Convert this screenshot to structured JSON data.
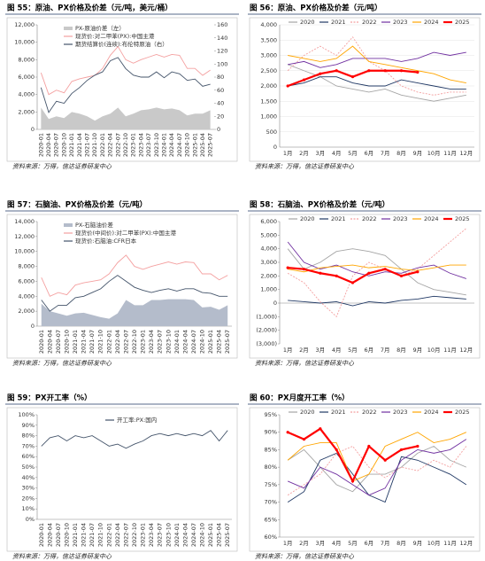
{
  "chart_data": [
    {
      "type": "line",
      "title": "图 55：原油、PX价格及价差（元/吨，美元/桶）",
      "source": "资料来源：万得，信达证券研发中心",
      "legend": "upper left",
      "categories": [
        "2020-01",
        "2020-04",
        "2020-07",
        "2020-10",
        "2021-01",
        "2021-04",
        "2021-07",
        "2021-10",
        "2022-01",
        "2022-04",
        "2022-07",
        "2022-10",
        "2023-01",
        "2023-04",
        "2023-07",
        "2023-10",
        "2024-01",
        "2024-04",
        "2024-07",
        "2024-10",
        "2025-01",
        "2025-04",
        "2025-07"
      ],
      "series": [
        {
          "name": "PX-原油价差（左）",
          "color": "#c9c9c9",
          "kind": "area",
          "values": [
            2500,
            1200,
            1500,
            1300,
            2000,
            1800,
            1500,
            1000,
            1500,
            1800,
            2500,
            1500,
            1800,
            2200,
            2300,
            2500,
            2300,
            2400,
            2200,
            1600,
            1800,
            1800,
            2200
          ]
        },
        {
          "name": "现货价:对二甲苯(PX):中国主港",
          "color": "#f4a0a0",
          "values": [
            6500,
            4000,
            4500,
            4200,
            5500,
            5800,
            6000,
            6200,
            7000,
            8500,
            9500,
            8000,
            7600,
            8000,
            8300,
            8600,
            8300,
            8600,
            8500,
            7000,
            7000,
            6200,
            6800
          ]
        },
        {
          "name": "期货结算价(连续):布伦特原油（右）",
          "color": "#44546a",
          "axis": "y2",
          "values": [
            64,
            26,
            43,
            40,
            55,
            64,
            75,
            83,
            88,
            105,
            110,
            93,
            83,
            80,
            80,
            88,
            79,
            88,
            85,
            75,
            77,
            66,
            69
          ]
        }
      ],
      "ylim": [
        0,
        12000
      ],
      "yticks": [
        0,
        {
          "value": 2000,
          "label": "2,000"
        },
        {
          "value": 4000,
          "label": "4,000"
        },
        {
          "value": 6000,
          "label": "6,000"
        },
        {
          "value": 8000,
          "label": "8,000"
        },
        {
          "value": 10000,
          "label": "10,000"
        },
        {
          "value": 12000,
          "label": "12,000"
        }
      ],
      "y2lim": [
        0,
        160
      ],
      "y2ticks": [
        0,
        20,
        40,
        60,
        80,
        100,
        120,
        140,
        160
      ]
    },
    {
      "type": "line",
      "title": "图 56：原油、PX价格及价差（元/吨）",
      "source": "资料来源：万得，信达证券研发中心",
      "legend": "top",
      "grid": true,
      "categories": [
        "1月",
        "2月",
        "3月",
        "4月",
        "5月",
        "6月",
        "7月",
        "8月",
        "9月",
        "10月",
        "11月",
        "12月"
      ],
      "series": [
        {
          "name": "2020",
          "color": "#a5a5a5",
          "values": [
            2700,
            2500,
            2300,
            2000,
            1900,
            1800,
            1900,
            1700,
            1600,
            1500,
            1600,
            1700
          ]
        },
        {
          "name": "2021",
          "color": "#203864",
          "values": [
            2000,
            2100,
            2300,
            2300,
            2100,
            2000,
            2000,
            2200,
            2100,
            2000,
            1900,
            1900
          ]
        },
        {
          "name": "2022",
          "color": "#f4a0a0",
          "dash": true,
          "values": [
            2500,
            3000,
            3300,
            3000,
            3600,
            2800,
            2500,
            2000,
            1800,
            1700,
            1800,
            1800
          ]
        },
        {
          "name": "2023",
          "color": "#7030a0",
          "values": [
            2700,
            2800,
            2600,
            2700,
            2900,
            2900,
            2900,
            2800,
            2900,
            3100,
            3000,
            3100
          ]
        },
        {
          "name": "2024",
          "color": "#ffa500",
          "values": [
            3000,
            2900,
            2800,
            2900,
            3300,
            2800,
            2700,
            2600,
            2500,
            2400,
            2200,
            2100
          ]
        },
        {
          "name": "2025",
          "color": "#ff0000",
          "width": 2.2,
          "marker": true,
          "values": [
            2000,
            2200,
            2400,
            2500,
            2300,
            2500,
            2500,
            2500,
            2450,
            null,
            null,
            null
          ]
        }
      ],
      "ylim": [
        0,
        4000
      ],
      "yticks": [
        0,
        500,
        {
          "value": 1000,
          "label": "1,000"
        },
        {
          "value": 1500,
          "label": "1,500"
        },
        {
          "value": 2000,
          "label": "2,000"
        },
        {
          "value": 2500,
          "label": "2,500"
        },
        {
          "value": 3000,
          "label": "3,000"
        },
        {
          "value": 3500,
          "label": "3,500"
        },
        {
          "value": 4000,
          "label": "4,000"
        }
      ]
    },
    {
      "type": "line",
      "title": "图 57：石脑油、PX价格及价差（元/吨）",
      "source": "资料来源：万得，信达证券研发中心",
      "legend": "upper left",
      "categories": [
        "2020-01",
        "2020-04",
        "2020-07",
        "2020-10",
        "2021-01",
        "2021-04",
        "2021-07",
        "2021-10",
        "2022-01",
        "2022-04",
        "2022-07",
        "2022-10",
        "2023-01",
        "2023-04",
        "2023-07",
        "2023-10",
        "2024-01",
        "2024-04",
        "2024-07",
        "2024-10",
        "2025-01",
        "2025-04",
        "2025-07"
      ],
      "series": [
        {
          "name": "PX-石脑油价差",
          "color": "#b4bccb",
          "kind": "area",
          "values": [
            3000,
            2000,
            1700,
            1400,
            1700,
            1800,
            1500,
            1200,
            1000,
            1700,
            3500,
            2800,
            2800,
            3500,
            3500,
            3600,
            3600,
            3600,
            3500,
            2500,
            2600,
            2200,
            2800
          ]
        },
        {
          "name": "现货价(中间价):对二甲苯(PX):中国主港",
          "color": "#f4a0a0",
          "values": [
            6500,
            4000,
            4500,
            4200,
            5500,
            5800,
            6000,
            6200,
            7000,
            8500,
            9500,
            8000,
            7600,
            8000,
            8300,
            8600,
            8300,
            8600,
            8500,
            7000,
            7000,
            6200,
            6800
          ]
        },
        {
          "name": "现货价:石脑油:CFR日本",
          "color": "#44546a",
          "values": [
            3500,
            2000,
            2800,
            2800,
            3800,
            4000,
            4500,
            5000,
            6000,
            6800,
            6000,
            5200,
            4800,
            4500,
            4800,
            5000,
            4700,
            5000,
            5000,
            4500,
            4400,
            4000,
            4000
          ]
        }
      ],
      "ylim": [
        0,
        14000
      ],
      "yticks": [
        0,
        {
          "value": 2000,
          "label": "2,000"
        },
        {
          "value": 4000,
          "label": "4,000"
        },
        {
          "value": 6000,
          "label": "6,000"
        },
        {
          "value": 8000,
          "label": "8,000"
        },
        {
          "value": 10000,
          "label": "10,000"
        },
        {
          "value": 12000,
          "label": "12,000"
        },
        {
          "value": 14000,
          "label": "14,000"
        }
      ]
    },
    {
      "type": "line",
      "title": "图 58：石脑油、PX价格及价差（元/吨）",
      "source": "资料来源：万得，信达证券研发中心",
      "legend": "top",
      "categories": [
        "1月",
        "2月",
        "3月",
        "4月",
        "5月",
        "6月",
        "7月",
        "8月",
        "9月",
        "10月",
        "11月",
        "12月"
      ],
      "series": [
        {
          "name": "2020",
          "color": "#a5a5a5",
          "values": [
            4000,
            2500,
            3000,
            3800,
            4000,
            3800,
            3500,
            2500,
            1500,
            1000,
            800,
            600
          ]
        },
        {
          "name": "2021",
          "color": "#203864",
          "values": [
            200,
            100,
            0,
            100,
            -200,
            100,
            0,
            200,
            300,
            500,
            400,
            300
          ]
        },
        {
          "name": "2022",
          "color": "#f4a0a0",
          "dash": true,
          "values": [
            2200,
            1500,
            100,
            -1000,
            2000,
            3000,
            2500,
            2000,
            2500,
            3500,
            4500,
            5500
          ]
        },
        {
          "name": "2023",
          "color": "#7030a0",
          "values": [
            4500,
            3000,
            2500,
            2800,
            2300,
            2000,
            2300,
            2200,
            2600,
            2800,
            2200,
            1800
          ]
        },
        {
          "name": "2024",
          "color": "#ffa500",
          "values": [
            2500,
            2300,
            2600,
            2700,
            2800,
            2600,
            2700,
            2500,
            2400,
            2600,
            2800,
            2800
          ]
        },
        {
          "name": "2025",
          "color": "#ff0000",
          "width": 2.2,
          "marker": true,
          "values": [
            2600,
            2500,
            2200,
            2000,
            1500,
            2200,
            2500,
            2000,
            2300,
            null,
            null,
            null
          ]
        }
      ],
      "ylim": [
        -3000,
        6000
      ],
      "yticks": [
        {
          "value": -3000,
          "label": "(3,000)"
        },
        {
          "value": -2000,
          "label": "(2,000)"
        },
        {
          "value": -1000,
          "label": "(1,000)"
        },
        0,
        {
          "value": 1000,
          "label": "1,000"
        },
        {
          "value": 2000,
          "label": "2,000"
        },
        {
          "value": 3000,
          "label": "3,000"
        },
        {
          "value": 4000,
          "label": "4,000"
        },
        {
          "value": 5000,
          "label": "5,000"
        },
        {
          "value": 6000,
          "label": "6,000"
        }
      ]
    },
    {
      "type": "line",
      "title": "图 59：PX开工率（%）",
      "source": "资料来源：万得，信达证券研发中心",
      "legend": "upper center",
      "categories": [
        "2020-01",
        "2020-04",
        "2020-07",
        "2020-10",
        "2021-01",
        "2021-04",
        "2021-07",
        "2021-10",
        "2022-01",
        "2022-04",
        "2022-07",
        "2022-10",
        "2023-01",
        "2023-04",
        "2023-07",
        "2023-10",
        "2024-01",
        "2024-04",
        "2024-07",
        "2024-10",
        "2025-01",
        "2025-04",
        "2025-07"
      ],
      "series": [
        {
          "name": "开工率:PX:国内",
          "color": "#44546a",
          "values": [
            70,
            78,
            80,
            75,
            80,
            78,
            80,
            75,
            70,
            72,
            68,
            72,
            75,
            80,
            82,
            80,
            82,
            80,
            82,
            80,
            85,
            75,
            85
          ]
        }
      ],
      "ylim": [
        0,
        100
      ],
      "yticks": [
        {
          "value": 0,
          "label": "0%"
        },
        {
          "value": 10,
          "label": "10%"
        },
        {
          "value": 20,
          "label": "20%"
        },
        {
          "value": 30,
          "label": "30%"
        },
        {
          "value": 40,
          "label": "40%"
        },
        {
          "value": 50,
          "label": "50%"
        },
        {
          "value": 60,
          "label": "60%"
        },
        {
          "value": 70,
          "label": "70%"
        },
        {
          "value": 80,
          "label": "80%"
        },
        {
          "value": 90,
          "label": "90%"
        },
        {
          "value": 100,
          "label": "100%"
        }
      ]
    },
    {
      "type": "line",
      "title": "图 60：PX月度开工率（%）",
      "source": "资料来源：万得，信达证券研发中心",
      "legend": "top",
      "categories": [
        "1月",
        "2月",
        "3月",
        "4月",
        "5月",
        "6月",
        "7月",
        "8月",
        "9月",
        "10月",
        "11月",
        "12月"
      ],
      "series": [
        {
          "name": "2020",
          "color": "#a5a5a5",
          "values": [
            82,
            85,
            80,
            75,
            73,
            78,
            78,
            80,
            84,
            86,
            82,
            80
          ]
        },
        {
          "name": "2021",
          "color": "#203864",
          "values": [
            70,
            73,
            82,
            84,
            78,
            72,
            70,
            83,
            82,
            80,
            78,
            75
          ]
        },
        {
          "name": "2022",
          "color": "#f4a0a0",
          "dash": true,
          "values": [
            72,
            75,
            78,
            84,
            86,
            80,
            77,
            80,
            79,
            82,
            80,
            86
          ]
        },
        {
          "name": "2023",
          "color": "#7030a0",
          "values": [
            76,
            74,
            80,
            78,
            75,
            72,
            74,
            82,
            85,
            84,
            85,
            88
          ]
        },
        {
          "name": "2024",
          "color": "#ffa500",
          "values": [
            82,
            86,
            87,
            87,
            76,
            78,
            86,
            88,
            90,
            87,
            88,
            90
          ]
        },
        {
          "name": "2025",
          "color": "#ff0000",
          "width": 2.2,
          "marker": true,
          "values": [
            90,
            88,
            91,
            85,
            76,
            86,
            82,
            85,
            86,
            null,
            null,
            null
          ]
        }
      ],
      "ylim": [
        60,
        95
      ],
      "yticks": [
        {
          "value": 60,
          "label": "60%"
        },
        {
          "value": 65,
          "label": "65%"
        },
        {
          "value": 70,
          "label": "70%"
        },
        {
          "value": 75,
          "label": "75%"
        },
        {
          "value": 80,
          "label": "80%"
        },
        {
          "value": 85,
          "label": "85%"
        },
        {
          "value": 90,
          "label": "90%"
        },
        {
          "value": 95,
          "label": "95%"
        }
      ]
    }
  ]
}
